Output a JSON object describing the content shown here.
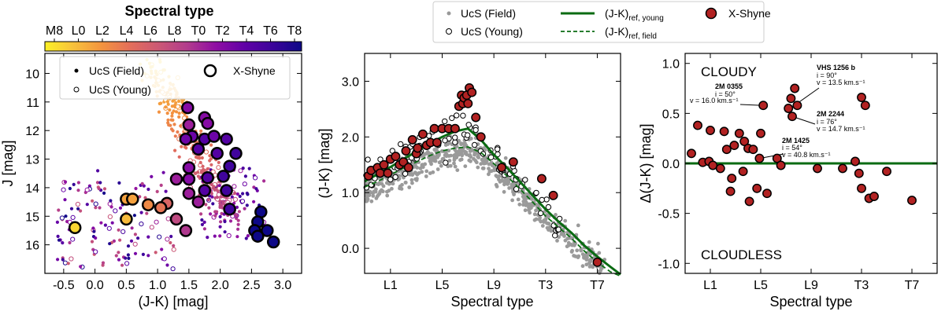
{
  "chart_data": [
    {
      "type": "scatter",
      "id": "cmd",
      "xlabel": "(J-K) [mag]",
      "ylabel": "J [mag]",
      "xlim": [
        -0.8,
        3.3
      ],
      "ylim": [
        17.0,
        9.3
      ],
      "xticks": [
        "-0.5",
        "0.0",
        "0.5",
        "1.0",
        "1.5",
        "2.0",
        "2.5",
        "3.0"
      ],
      "xtick_values": [
        -0.5,
        0.0,
        0.5,
        1.0,
        1.5,
        2.0,
        2.5,
        3.0
      ],
      "yticks": [
        "10",
        "11",
        "12",
        "13",
        "14",
        "15",
        "16"
      ],
      "ytick_values": [
        10,
        11,
        12,
        13,
        14,
        15,
        16
      ],
      "colorbar": {
        "title": "Spectral type",
        "labels": [
          "M8",
          "L0",
          "L2",
          "L4",
          "L6",
          "L8",
          "T0",
          "T2",
          "T4",
          "T6",
          "T8"
        ],
        "colors": [
          "#fcf026",
          "#f7c13c",
          "#f3933f",
          "#e36e5b",
          "#cb5875",
          "#b13b8d",
          "#8f0da4",
          "#6001a6",
          "#3b049a",
          "#0d0887"
        ]
      },
      "legend": [
        {
          "label": "UcS (Field)"
        },
        {
          "label": "UcS (Young)"
        },
        {
          "label": "X-Shyne"
        }
      ],
      "series": [
        {
          "name": "X-Shyne",
          "points": [
            {
              "x": 1.48,
              "y": 11.2,
              "sp": 12
            },
            {
              "x": 1.75,
              "y": 11.55,
              "sp": 12
            },
            {
              "x": 1.8,
              "y": 11.75,
              "sp": 12
            },
            {
              "x": 1.5,
              "y": 11.8,
              "sp": 11
            },
            {
              "x": 1.55,
              "y": 12.2,
              "sp": 13
            },
            {
              "x": 1.45,
              "y": 12.3,
              "sp": 13
            },
            {
              "x": 1.75,
              "y": 12.3,
              "sp": 14
            },
            {
              "x": 1.9,
              "y": 12.2,
              "sp": 13
            },
            {
              "x": 2.1,
              "y": 12.3,
              "sp": 14
            },
            {
              "x": 1.65,
              "y": 12.65,
              "sp": 14
            },
            {
              "x": 2.25,
              "y": 12.8,
              "sp": 15
            },
            {
              "x": 1.95,
              "y": 12.8,
              "sp": 14
            },
            {
              "x": 2.15,
              "y": 13.25,
              "sp": 15
            },
            {
              "x": 1.5,
              "y": 13.3,
              "sp": 12
            },
            {
              "x": 2.05,
              "y": 13.6,
              "sp": 15
            },
            {
              "x": 1.8,
              "y": 13.65,
              "sp": 14
            },
            {
              "x": 1.5,
              "y": 13.7,
              "sp": 12
            },
            {
              "x": 1.75,
              "y": 14.1,
              "sp": 14
            },
            {
              "x": 2.1,
              "y": 14.1,
              "sp": 15
            },
            {
              "x": 1.3,
              "y": 13.7,
              "sp": 11
            },
            {
              "x": 1.5,
              "y": 14.2,
              "sp": 11
            },
            {
              "x": 1.65,
              "y": 14.5,
              "sp": 11
            },
            {
              "x": 2.15,
              "y": 14.75,
              "sp": 15
            },
            {
              "x": 2.65,
              "y": 14.85,
              "sp": 17
            },
            {
              "x": 2.6,
              "y": 15.2,
              "sp": 17
            },
            {
              "x": 2.55,
              "y": 15.5,
              "sp": 17
            },
            {
              "x": 2.75,
              "y": 15.5,
              "sp": 17
            },
            {
              "x": 2.6,
              "y": 15.7,
              "sp": 17
            },
            {
              "x": 2.85,
              "y": 15.9,
              "sp": 17
            },
            {
              "x": 1.3,
              "y": 15.1,
              "sp": 9
            },
            {
              "x": 1.45,
              "y": 15.5,
              "sp": 10
            },
            {
              "x": 1.15,
              "y": 14.55,
              "sp": 7
            },
            {
              "x": 1.05,
              "y": 14.7,
              "sp": 6
            },
            {
              "x": 0.85,
              "y": 14.6,
              "sp": 5
            },
            {
              "x": 0.5,
              "y": 14.4,
              "sp": 4
            },
            {
              "x": 0.6,
              "y": 14.4,
              "sp": 4
            },
            {
              "x": 0.5,
              "y": 15.1,
              "sp": 3
            },
            {
              "x": -0.32,
              "y": 15.4,
              "sp": 2
            }
          ]
        }
      ]
    },
    {
      "type": "scatter",
      "id": "sptcolor",
      "xlabel": "Spectral type",
      "ylabel": "(J-K) [mag]",
      "xlim": [
        9.0,
        28.8
      ],
      "ylim": [
        -0.45,
        3.5
      ],
      "xticks": [
        "L1",
        "L5",
        "L9",
        "T3",
        "T7"
      ],
      "xtick_values": [
        11,
        15,
        19,
        23,
        27
      ],
      "yticks": [
        "0.0",
        "1.0",
        "2.0",
        "3.0"
      ],
      "ytick_values": [
        0.0,
        1.0,
        2.0,
        3.0
      ],
      "legend": [
        {
          "label": "UcS (Field)"
        },
        {
          "label": "UcS (Young)"
        },
        {
          "label": "(J-K)",
          "sub": "ref, young"
        },
        {
          "label": "(J-K)",
          "sub": "ref, field"
        },
        {
          "label": "X-Shyne"
        }
      ],
      "lines": [
        {
          "name": "ref_young",
          "x": [
            9.0,
            10,
            11,
            12,
            13,
            14,
            15,
            16,
            17,
            18,
            19,
            20,
            21,
            22,
            23,
            24,
            25,
            26,
            27,
            28,
            28.8
          ],
          "y": [
            1.2,
            1.33,
            1.46,
            1.6,
            1.74,
            1.88,
            2.0,
            2.1,
            2.15,
            1.95,
            1.68,
            1.45,
            1.2,
            0.95,
            0.7,
            0.48,
            0.28,
            0.05,
            -0.15,
            -0.33,
            -0.47
          ]
        },
        {
          "name": "ref_field",
          "x": [
            9.0,
            10,
            11,
            12,
            13,
            14,
            15,
            16,
            17,
            18,
            19,
            20,
            21,
            22,
            23,
            24,
            25,
            26,
            27,
            28,
            28.8
          ],
          "y": [
            1.1,
            1.2,
            1.32,
            1.44,
            1.55,
            1.66,
            1.75,
            1.8,
            1.82,
            1.72,
            1.52,
            1.3,
            1.07,
            0.83,
            0.58,
            0.38,
            0.18,
            -0.05,
            -0.25,
            -0.42,
            -0.5
          ]
        }
      ],
      "series": [
        {
          "name": "X-Shyne",
          "points": [
            {
              "x": 9.3,
              "y": 1.3
            },
            {
              "x": 9.5,
              "y": 1.4
            },
            {
              "x": 10.0,
              "y": 1.45
            },
            {
              "x": 10.2,
              "y": 1.35
            },
            {
              "x": 10.5,
              "y": 1.5
            },
            {
              "x": 10.8,
              "y": 1.35
            },
            {
              "x": 11.0,
              "y": 1.6
            },
            {
              "x": 11.4,
              "y": 1.65
            },
            {
              "x": 11.7,
              "y": 1.5
            },
            {
              "x": 12.0,
              "y": 1.55
            },
            {
              "x": 12.2,
              "y": 1.75
            },
            {
              "x": 12.4,
              "y": 1.45
            },
            {
              "x": 12.7,
              "y": 1.95
            },
            {
              "x": 13.0,
              "y": 1.7
            },
            {
              "x": 13.1,
              "y": 1.8
            },
            {
              "x": 13.5,
              "y": 2.05
            },
            {
              "x": 13.8,
              "y": 1.85
            },
            {
              "x": 14.1,
              "y": 1.9
            },
            {
              "x": 14.4,
              "y": 2.15
            },
            {
              "x": 14.6,
              "y": 1.9
            },
            {
              "x": 15.0,
              "y": 2.15
            },
            {
              "x": 15.5,
              "y": 2.15
            },
            {
              "x": 16.0,
              "y": 2.15
            },
            {
              "x": 16.3,
              "y": 2.55
            },
            {
              "x": 16.5,
              "y": 2.75
            },
            {
              "x": 16.6,
              "y": 2.6
            },
            {
              "x": 16.7,
              "y": 2.7
            },
            {
              "x": 16.9,
              "y": 2.75
            },
            {
              "x": 17.0,
              "y": 2.6
            },
            {
              "x": 17.1,
              "y": 2.88
            },
            {
              "x": 17.3,
              "y": 2.8
            },
            {
              "x": 17.6,
              "y": 2.35
            },
            {
              "x": 18.0,
              "y": 2.0
            },
            {
              "x": 19.6,
              "y": 1.45
            },
            {
              "x": 20.5,
              "y": 1.55
            },
            {
              "x": 22.7,
              "y": 1.25
            },
            {
              "x": 23.6,
              "y": 0.95
            },
            {
              "x": 27.0,
              "y": -0.25
            }
          ]
        }
      ]
    },
    {
      "type": "scatter",
      "id": "residual",
      "xlabel": "Spectral type",
      "ylabel": "Δ(J-K) [mag]",
      "xlim": [
        9.0,
        29.0
      ],
      "ylim": [
        -1.1,
        1.1
      ],
      "xticks": [
        "L1",
        "L5",
        "L9",
        "T3",
        "T7"
      ],
      "xtick_values": [
        11,
        15,
        19,
        23,
        27
      ],
      "yticks": [
        "-1.0",
        "-0.5",
        "0.0",
        "0.5",
        "1.0"
      ],
      "ytick_values": [
        -1.0,
        -0.5,
        0.0,
        0.5,
        1.0
      ],
      "zero_line": 0.0,
      "labels": {
        "top": "CLOUDY",
        "bottom": "CLOUDLESS"
      },
      "annotations": [
        {
          "name": "VHS 1256 b",
          "lines": [
            "i = 90°",
            "v = 13.5 km.s⁻¹"
          ]
        },
        {
          "name": "2M 0355",
          "lines": [
            "i = 50°",
            "v = 16.0 km.s⁻¹"
          ]
        },
        {
          "name": "2M 2244",
          "lines": [
            "i = 76°",
            "v = 14.7 km.s⁻¹"
          ]
        },
        {
          "name": "2M 1425",
          "lines": [
            "i = 54°",
            "v = 40.8 km.s⁻¹"
          ]
        }
      ],
      "series": [
        {
          "name": "X-Shyne",
          "points": [
            {
              "x": 9.5,
              "y": 0.1
            },
            {
              "x": 10.0,
              "y": 0.38
            },
            {
              "x": 10.4,
              "y": 0.01
            },
            {
              "x": 10.9,
              "y": 0.02
            },
            {
              "x": 11.0,
              "y": 0.33
            },
            {
              "x": 11.2,
              "y": -0.02
            },
            {
              "x": 11.8,
              "y": -0.05
            },
            {
              "x": 12.1,
              "y": 0.32
            },
            {
              "x": 12.3,
              "y": 0.14
            },
            {
              "x": 12.6,
              "y": -0.28
            },
            {
              "x": 12.7,
              "y": -0.15
            },
            {
              "x": 12.9,
              "y": 0.18
            },
            {
              "x": 13.3,
              "y": 0.3
            },
            {
              "x": 13.6,
              "y": -0.08
            },
            {
              "x": 13.7,
              "y": 0.22
            },
            {
              "x": 14.0,
              "y": 0.15
            },
            {
              "x": 14.1,
              "y": -0.38
            },
            {
              "x": 14.4,
              "y": 0.14
            },
            {
              "x": 14.7,
              "y": -0.25
            },
            {
              "x": 14.9,
              "y": 0.05
            },
            {
              "x": 15.0,
              "y": 0.3
            },
            {
              "x": 15.2,
              "y": 0.58
            },
            {
              "x": 15.5,
              "y": -0.3
            },
            {
              "x": 16.3,
              "y": 0.05
            },
            {
              "x": 16.6,
              "y": -0.02
            },
            {
              "x": 17.2,
              "y": 0.55
            },
            {
              "x": 17.4,
              "y": 0.65
            },
            {
              "x": 17.5,
              "y": 0.47
            },
            {
              "x": 17.7,
              "y": 0.75
            },
            {
              "x": 17.9,
              "y": 0.58
            },
            {
              "x": 19.5,
              "y": -0.05
            },
            {
              "x": 21.5,
              "y": -0.05
            },
            {
              "x": 22.5,
              "y": 0.02
            },
            {
              "x": 22.8,
              "y": -0.1
            },
            {
              "x": 23.0,
              "y": 0.66
            },
            {
              "x": 23.0,
              "y": -0.25
            },
            {
              "x": 23.3,
              "y": 0.58
            },
            {
              "x": 23.6,
              "y": -0.35
            },
            {
              "x": 24.0,
              "y": -0.33
            },
            {
              "x": 25.0,
              "y": -0.08
            },
            {
              "x": 27.0,
              "y": -0.37
            }
          ]
        }
      ]
    }
  ]
}
